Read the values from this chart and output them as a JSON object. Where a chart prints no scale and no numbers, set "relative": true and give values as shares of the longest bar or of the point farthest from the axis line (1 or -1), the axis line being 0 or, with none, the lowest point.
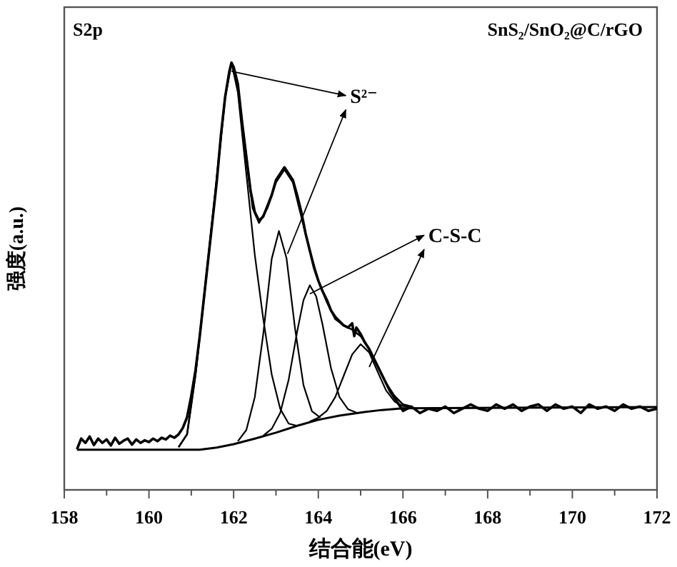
{
  "chart_data": {
    "type": "line",
    "relative": true,
    "xlabel": "结合能(eV)",
    "ylabel": "强度(a.u.)",
    "xlim": [
      158,
      172
    ],
    "xticks": [
      158,
      {
        "value": 159,
        "label": null
      },
      160,
      {
        "value": 161,
        "label": null
      },
      162,
      {
        "value": 163,
        "label": null
      },
      164,
      {
        "value": 165,
        "label": null
      },
      166,
      {
        "value": 167,
        "label": null
      },
      168,
      {
        "value": 169,
        "label": null
      },
      170,
      {
        "value": 171,
        "label": null
      },
      172
    ],
    "tick_labels": "x",
    "grid": false,
    "marker": "none",
    "line_style": "solid",
    "annotations": [
      "S2p",
      "SnS₂/SnO₂@C/rGO",
      {
        "text": "S²⁻",
        "x": 161.95,
        "y": 1.0
      },
      {
        "text": "C-S-C",
        "x": 163.8,
        "y": 0.479
      }
    ],
    "series": [
      {
        "color": "#000000",
        "x": [
          158.3,
          158.4,
          158.5,
          158.6,
          158.7,
          158.8,
          158.9,
          159.0,
          159.1,
          159.2,
          159.3,
          159.4,
          159.5,
          159.6,
          159.7,
          159.8,
          159.9,
          160.0,
          160.1,
          160.2,
          160.3,
          160.4,
          160.5,
          160.6,
          160.7,
          160.8,
          160.9,
          161.0,
          161.1,
          161.2,
          161.3,
          161.4,
          161.5,
          161.6,
          161.7,
          161.8,
          161.9,
          161.95,
          162.0,
          162.1,
          162.2,
          162.3,
          162.4,
          162.5,
          162.6,
          162.7,
          162.8,
          162.9,
          163.0,
          163.1,
          163.2,
          163.3,
          163.4,
          163.5,
          163.6,
          163.7,
          163.8,
          163.9,
          164.0,
          164.1,
          164.2,
          164.3,
          164.4,
          164.5,
          164.6,
          164.7,
          164.8,
          164.85,
          164.9,
          165.0,
          165.1,
          165.2,
          165.3,
          165.4,
          165.5,
          165.6,
          165.7,
          165.8,
          165.9,
          166.0,
          166.2,
          166.4,
          166.6,
          166.8,
          167.0,
          167.2,
          167.4,
          167.6,
          167.8,
          168.0,
          168.2,
          168.4,
          168.6,
          168.8,
          169.0,
          169.2,
          169.4,
          169.6,
          169.8,
          170.0,
          170.2,
          170.4,
          170.6,
          170.8,
          171.0,
          171.2,
          171.4,
          171.6,
          171.8,
          172.0
        ],
        "values": [
          0.095,
          0.12,
          0.11,
          0.125,
          0.105,
          0.12,
          0.11,
          0.118,
          0.104,
          0.122,
          0.108,
          0.115,
          0.12,
          0.106,
          0.118,
          0.11,
          0.116,
          0.112,
          0.12,
          0.114,
          0.122,
          0.118,
          0.127,
          0.122,
          0.13,
          0.145,
          0.17,
          0.22,
          0.28,
          0.36,
          0.45,
          0.54,
          0.63,
          0.72,
          0.83,
          0.92,
          0.98,
          1.0,
          0.99,
          0.95,
          0.86,
          0.78,
          0.7,
          0.65,
          0.63,
          0.64,
          0.665,
          0.69,
          0.725,
          0.74,
          0.755,
          0.74,
          0.725,
          0.69,
          0.65,
          0.6,
          0.56,
          0.52,
          0.49,
          0.465,
          0.445,
          0.42,
          0.405,
          0.395,
          0.385,
          0.38,
          0.39,
          0.36,
          0.38,
          0.365,
          0.345,
          0.33,
          0.31,
          0.29,
          0.27,
          0.25,
          0.23,
          0.215,
          0.2,
          0.185,
          0.195,
          0.18,
          0.19,
          0.185,
          0.195,
          0.18,
          0.19,
          0.2,
          0.19,
          0.185,
          0.2,
          0.19,
          0.2,
          0.185,
          0.195,
          0.2,
          0.185,
          0.2,
          0.19,
          0.195,
          0.18,
          0.2,
          0.19,
          0.195,
          0.185,
          0.2,
          0.19,
          0.195,
          0.185,
          0.19
        ]
      },
      {
        "color": "#000000",
        "x": [
          158.3,
          161.2,
          161.6,
          162.0,
          162.5,
          163.0,
          163.5,
          164.0,
          164.5,
          165.0,
          165.5,
          166.0,
          172.0
        ],
        "values": [
          0.094,
          0.094,
          0.099,
          0.107,
          0.12,
          0.134,
          0.15,
          0.164,
          0.174,
          0.181,
          0.187,
          0.191,
          0.194
        ]
      },
      {
        "color": "#000000",
        "x": [
          160.7,
          160.9,
          161.1,
          161.3,
          161.55,
          161.8,
          161.95,
          162.1,
          162.3,
          162.45,
          162.6,
          162.8,
          163.0,
          163.2,
          163.4,
          163.6,
          163.8,
          164.0,
          164.2,
          164.4,
          164.6,
          164.8,
          165.0,
          165.2,
          165.4,
          165.6,
          165.8,
          166.0,
          166.2
        ],
        "values": [
          0.1,
          0.13,
          0.27,
          0.45,
          0.68,
          0.92,
          1.0,
          0.94,
          0.78,
          0.66,
          0.625,
          0.66,
          0.72,
          0.75,
          0.72,
          0.64,
          0.56,
          0.49,
          0.44,
          0.4,
          0.385,
          0.375,
          0.36,
          0.33,
          0.29,
          0.25,
          0.22,
          0.2,
          0.195
        ]
      },
      {
        "color": "#000000",
        "x": [
          160.7,
          160.9,
          161.1,
          161.3,
          161.55,
          161.8,
          161.95,
          162.1,
          162.3,
          162.5,
          162.7,
          162.9,
          163.1,
          163.3,
          163.5
        ],
        "values": [
          0.1,
          0.13,
          0.27,
          0.45,
          0.68,
          0.92,
          1.0,
          0.93,
          0.74,
          0.55,
          0.4,
          0.27,
          0.19,
          0.155,
          0.15
        ]
      },
      {
        "color": "#000000",
        "x": [
          162.1,
          162.3,
          162.5,
          162.7,
          162.9,
          163.07,
          163.25,
          163.45,
          163.65,
          163.85,
          164.05
        ],
        "values": [
          0.114,
          0.14,
          0.217,
          0.365,
          0.541,
          0.606,
          0.542,
          0.378,
          0.245,
          0.184,
          0.169
        ]
      },
      {
        "color": "#000000",
        "x": [
          162.7,
          162.9,
          163.1,
          163.3,
          163.5,
          163.65,
          163.8,
          163.95,
          164.1,
          164.3,
          164.5,
          164.7,
          164.9
        ],
        "values": [
          0.127,
          0.143,
          0.18,
          0.258,
          0.37,
          0.444,
          0.479,
          0.453,
          0.387,
          0.285,
          0.217,
          0.189,
          0.181
        ]
      },
      {
        "color": "#000000",
        "x": [
          163.8,
          164.0,
          164.2,
          164.4,
          164.6,
          164.8,
          165.0,
          165.2,
          165.4,
          165.6,
          165.8,
          166.0,
          166.2
        ],
        "values": [
          0.16,
          0.169,
          0.185,
          0.217,
          0.267,
          0.317,
          0.341,
          0.322,
          0.277,
          0.233,
          0.207,
          0.196,
          0.193
        ]
      }
    ]
  }
}
